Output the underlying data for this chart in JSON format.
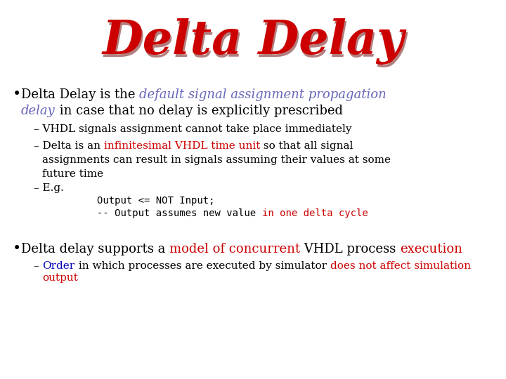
{
  "title": "Delta Delay",
  "title_color": "#cc0000",
  "title_bg_color": "#ffff00",
  "title_fontsize": 48,
  "body_bg_color": "#ffffff",
  "bullet1_italic_color": "#6666bb",
  "sub2_red_color": "#cc0000",
  "code_line2_red_color": "#cc0000",
  "code_bg": "#ffffff",
  "code_border": "#111111",
  "code_shadow_color": "#999999",
  "bullet2_red_color": "#cc0000",
  "sub4_blue_color": "#0000bb",
  "sub4_red_color": "#cc0000",
  "text_color": "#000000",
  "font_family": "serif",
  "fig_width": 7.2,
  "fig_height": 5.4,
  "dpi": 100
}
